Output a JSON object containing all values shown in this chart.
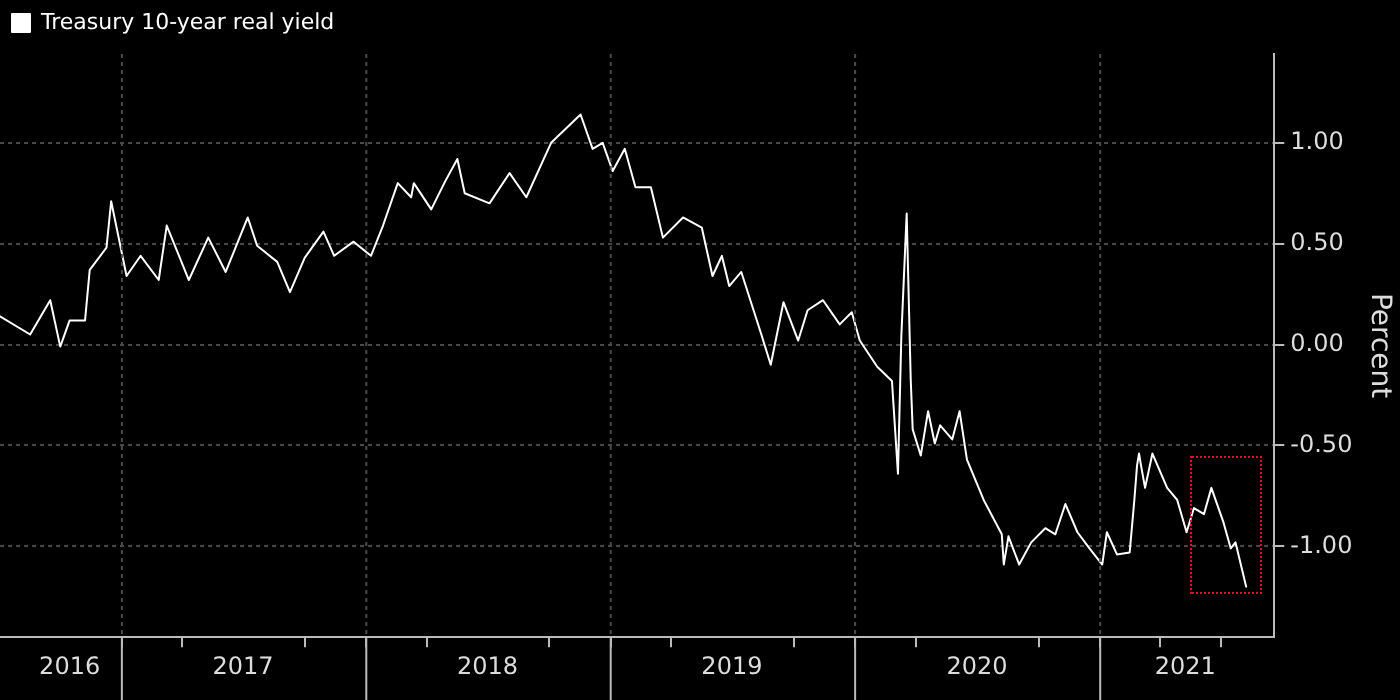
{
  "chart_data": {
    "type": "line",
    "ylabel": "Percent",
    "series": [
      {
        "name": "Treasury 10-year real yield",
        "color": "#ffffff",
        "x": [
          "2016-07-03",
          "2016-08-17",
          "2016-09-16",
          "2016-10-01",
          "2016-10-15",
          "2016-11-07",
          "2016-11-14",
          "2016-12-09",
          "2016-12-16",
          "2017-01-08",
          "2017-01-29",
          "2017-02-25",
          "2017-03-09",
          "2017-04-11",
          "2017-05-10",
          "2017-06-05",
          "2017-07-08",
          "2017-07-22",
          "2017-08-21",
          "2017-09-09",
          "2017-10-01",
          "2017-10-29",
          "2017-11-14",
          "2017-12-13",
          "2018-01-08",
          "2018-01-26",
          "2018-02-17",
          "2018-03-09",
          "2018-03-13",
          "2018-04-08",
          "2018-04-29",
          "2018-05-17",
          "2018-05-28",
          "2018-07-04",
          "2018-08-03",
          "2018-08-28",
          "2018-10-04",
          "2018-11-17",
          "2018-12-05",
          "2018-12-20",
          "2019-01-04",
          "2019-01-22",
          "2019-02-07",
          "2019-03-02",
          "2019-03-20",
          "2019-04-19",
          "2019-05-17",
          "2019-06-02",
          "2019-06-16",
          "2019-06-27",
          "2019-07-15",
          "2019-08-14",
          "2019-08-28",
          "2019-09-16",
          "2019-10-08",
          "2019-10-22",
          "2019-11-14",
          "2019-12-09",
          "2019-12-27",
          "2020-01-08",
          "2020-02-03",
          "2020-02-25",
          "2020-03-05",
          "2020-03-10",
          "2020-03-18",
          "2020-03-24",
          "2020-03-27",
          "2020-04-08",
          "2020-04-19",
          "2020-04-29",
          "2020-05-07",
          "2020-05-25",
          "2020-06-05",
          "2020-06-16",
          "2020-07-11",
          "2020-08-07",
          "2020-08-10",
          "2020-08-17",
          "2020-09-02",
          "2020-09-20",
          "2020-10-11",
          "2020-10-26",
          "2020-11-10",
          "2020-11-28",
          "2020-12-16",
          "2021-01-04",
          "2021-01-11",
          "2021-01-26",
          "2021-02-14",
          "2021-02-21",
          "2021-02-25",
          "2021-02-28",
          "2021-03-03",
          "2021-03-09",
          "2021-03-20",
          "2021-04-11",
          "2021-04-26",
          "2021-05-10",
          "2021-05-21",
          "2021-06-05",
          "2021-06-16",
          "2021-07-04",
          "2021-07-15",
          "2021-07-22",
          "2021-08-07"
        ],
        "values": [
          0.14,
          0.05,
          0.22,
          -0.01,
          0.12,
          0.12,
          0.37,
          0.48,
          0.71,
          0.34,
          0.44,
          0.32,
          0.59,
          0.32,
          0.53,
          0.36,
          0.63,
          0.49,
          0.41,
          0.26,
          0.43,
          0.56,
          0.44,
          0.51,
          0.44,
          0.59,
          0.8,
          0.73,
          0.8,
          0.67,
          0.81,
          0.92,
          0.75,
          0.7,
          0.85,
          0.73,
          1.0,
          1.14,
          0.97,
          1.0,
          0.86,
          0.97,
          0.78,
          0.78,
          0.53,
          0.63,
          0.58,
          0.34,
          0.44,
          0.29,
          0.36,
          0.05,
          -0.1,
          0.21,
          0.02,
          0.17,
          0.22,
          0.1,
          0.16,
          0.02,
          -0.11,
          -0.18,
          -0.64,
          0.04,
          0.65,
          -0.17,
          -0.42,
          -0.55,
          -0.33,
          -0.49,
          -0.4,
          -0.47,
          -0.33,
          -0.57,
          -0.77,
          -0.94,
          -1.09,
          -0.95,
          -1.09,
          -0.98,
          -0.91,
          -0.94,
          -0.79,
          -0.93,
          -1.01,
          -1.09,
          -0.93,
          -1.04,
          -1.03,
          -0.77,
          -0.6,
          -0.54,
          -0.6,
          -0.71,
          -0.54,
          -0.71,
          -0.77,
          -0.93,
          -0.81,
          -0.84,
          -0.71,
          -0.88,
          -1.01,
          -0.98,
          -1.2
        ]
      }
    ],
    "xlim": [
      "2016-07-03",
      "2021-09-18"
    ],
    "xticks": [
      {
        "value": "2016-10-15",
        "label": "2016"
      },
      {
        "value": "2017-01-01",
        "label": null
      },
      {
        "value": "2017-04-01",
        "label": null
      },
      {
        "value": "2017-07-01",
        "label": "2017"
      },
      {
        "value": "2017-10-01",
        "label": null
      },
      {
        "value": "2018-01-01",
        "label": null
      },
      {
        "value": "2018-04-01",
        "label": null
      },
      {
        "value": "2018-07-01",
        "label": "2018"
      },
      {
        "value": "2018-10-01",
        "label": null
      },
      {
        "value": "2019-01-01",
        "label": null
      },
      {
        "value": "2019-04-01",
        "label": null
      },
      {
        "value": "2019-07-01",
        "label": "2019"
      },
      {
        "value": "2019-10-01",
        "label": null
      },
      {
        "value": "2020-01-01",
        "label": null
      },
      {
        "value": "2020-04-01",
        "label": null
      },
      {
        "value": "2020-07-01",
        "label": "2020"
      },
      {
        "value": "2020-10-01",
        "label": null
      },
      {
        "value": "2021-01-01",
        "label": null
      },
      {
        "value": "2021-04-01",
        "label": null
      },
      {
        "value": "2021-05-08",
        "label": "2021"
      },
      {
        "value": "2021-07-01",
        "label": null
      }
    ],
    "ylim": [
      -1.45,
      1.44
    ],
    "yticks": [
      {
        "value": -1,
        "label": "-1.00"
      },
      {
        "value": -0.5,
        "label": "-0.50"
      },
      {
        "value": 0,
        "label": "0.00"
      },
      {
        "value": 0.5,
        "label": "0.50"
      },
      {
        "value": 1,
        "label": "1.00"
      }
    ],
    "grid": true,
    "legend": "top left",
    "marker": "none",
    "line_style": "solid"
  }
}
